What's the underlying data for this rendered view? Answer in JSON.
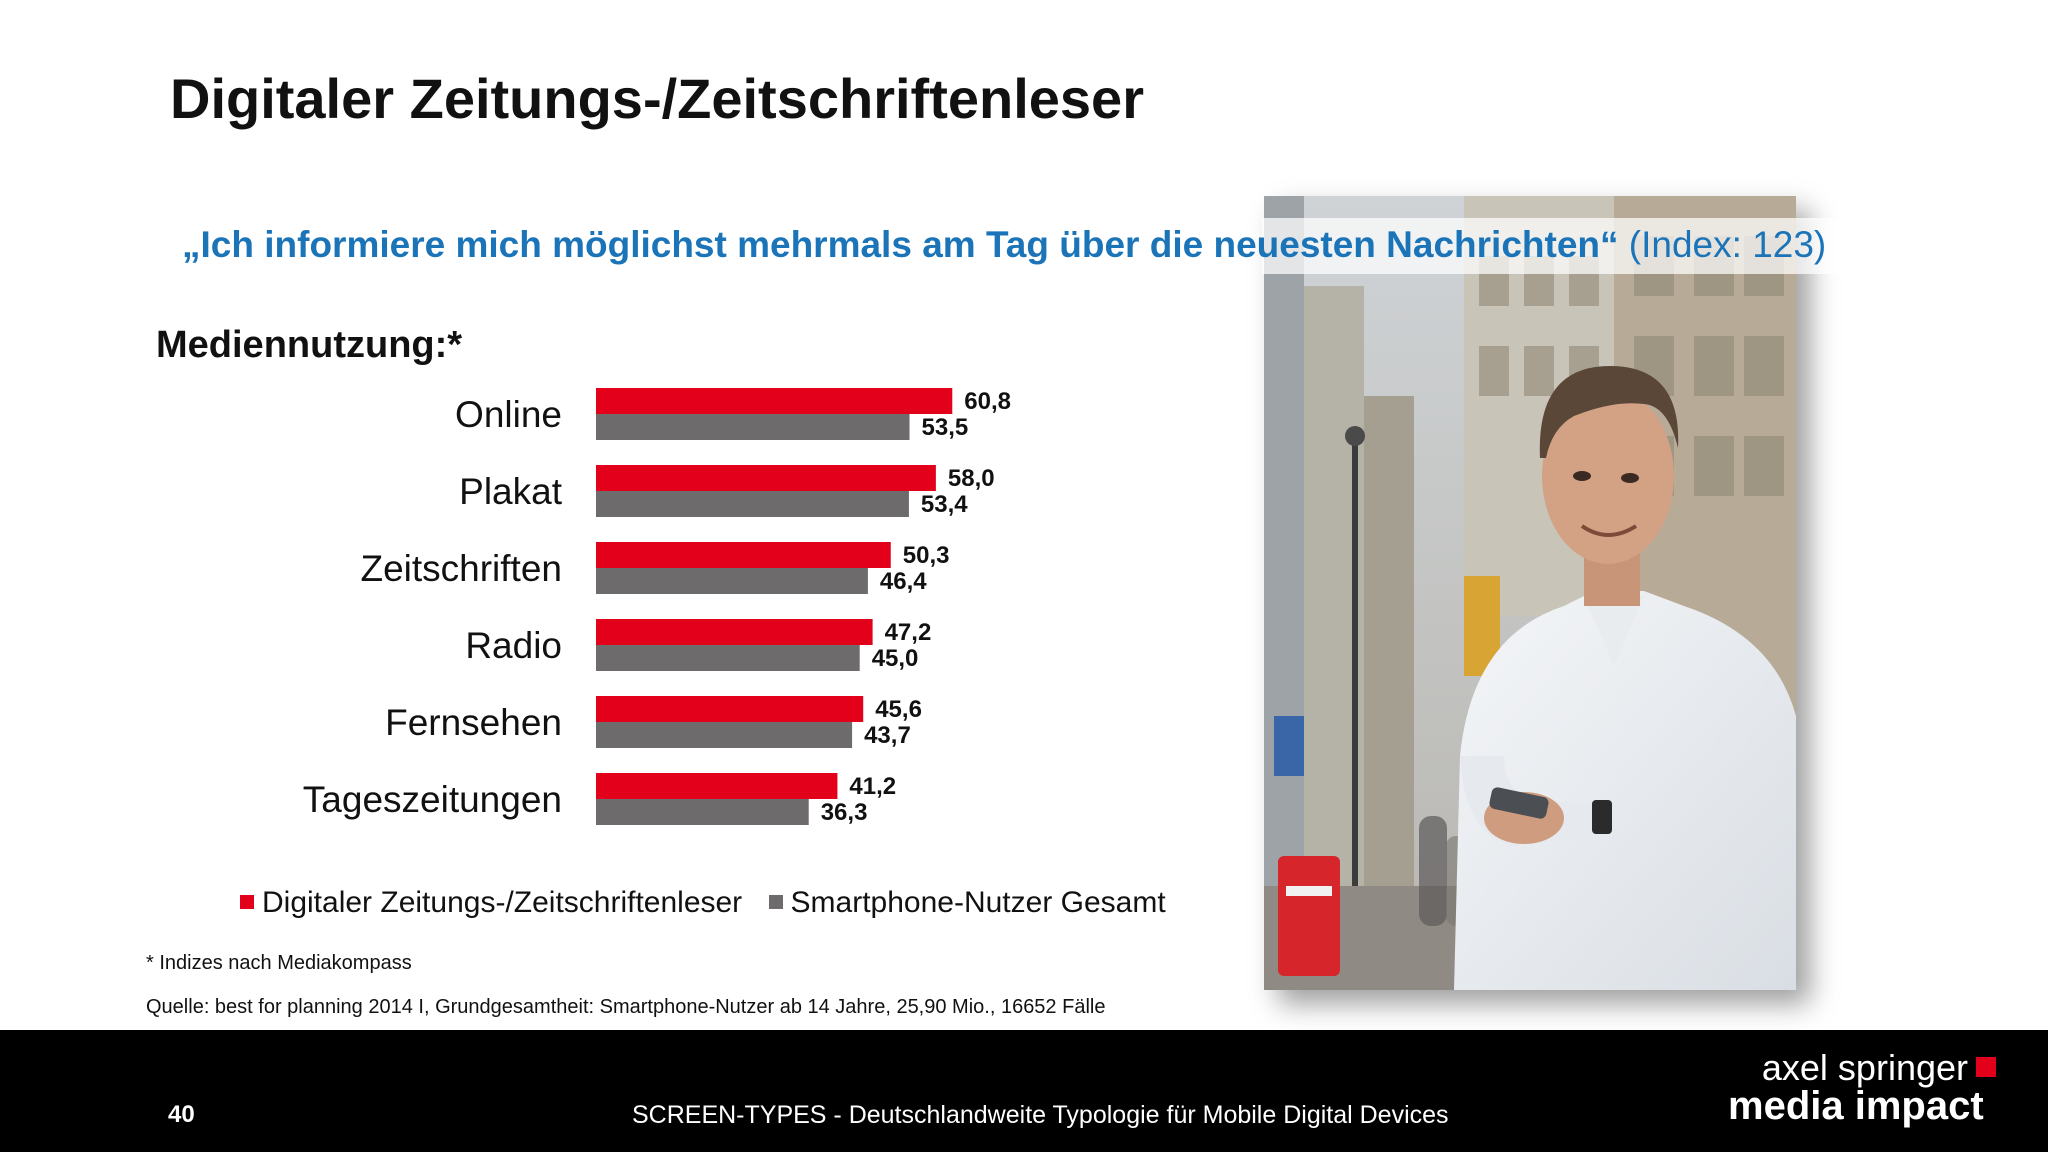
{
  "title": "Digitaler Zeitungs-/Zeitschriftenleser",
  "quote": {
    "main": "„Ich informiere mich möglichst mehrmals am Tag über die neuesten Nachrichten“",
    "index": "(Index: 123)"
  },
  "subtitle": "Mediennutzung:*",
  "photo_icon": "man-with-smartphone-photo",
  "colors": {
    "series_digital": "#e3001b",
    "series_total": "#6d6b6c",
    "quote": "#1b74b8",
    "footer_bg": "#000000"
  },
  "chart_data": {
    "type": "bar",
    "orientation": "horizontal",
    "categories": [
      "Online",
      "Plakat",
      "Zeitschriften",
      "Radio",
      "Fernsehen",
      "Tageszeitungen"
    ],
    "series": [
      {
        "name": "Digitaler Zeitungs-/Zeitschriftenleser",
        "values": [
          60.8,
          58.0,
          50.3,
          47.2,
          45.6,
          41.2
        ],
        "labels": [
          "60,8",
          "58,0",
          "50,3",
          "47,2",
          "45,6",
          "41,2"
        ]
      },
      {
        "name": "Smartphone-Nutzer Gesamt",
        "values": [
          53.5,
          53.4,
          46.4,
          45.0,
          43.7,
          36.3
        ],
        "labels": [
          "53,5",
          "53,4",
          "46,4",
          "45,0",
          "43,7",
          "36,3"
        ]
      }
    ],
    "xlim": [
      0,
      100
    ],
    "grid": false,
    "legend_position": "bottom"
  },
  "legend": {
    "digital": "Digitaler Zeitungs-/Zeitschriftenleser",
    "total": "Smartphone-Nutzer Gesamt"
  },
  "footnote": "* Indizes nach Mediakompass",
  "source": "Quelle: best for planning 2014 I, Grundgesamtheit: Smartphone-Nutzer ab 14 Jahre, 25,90 Mio., 16652 Fälle",
  "footer": {
    "page_number": "40",
    "text": "SCREEN-TYPES - Deutschlandweite Typologie für Mobile Digital Devices",
    "brand_line1": "axel springer",
    "brand_line2": "media impact"
  }
}
